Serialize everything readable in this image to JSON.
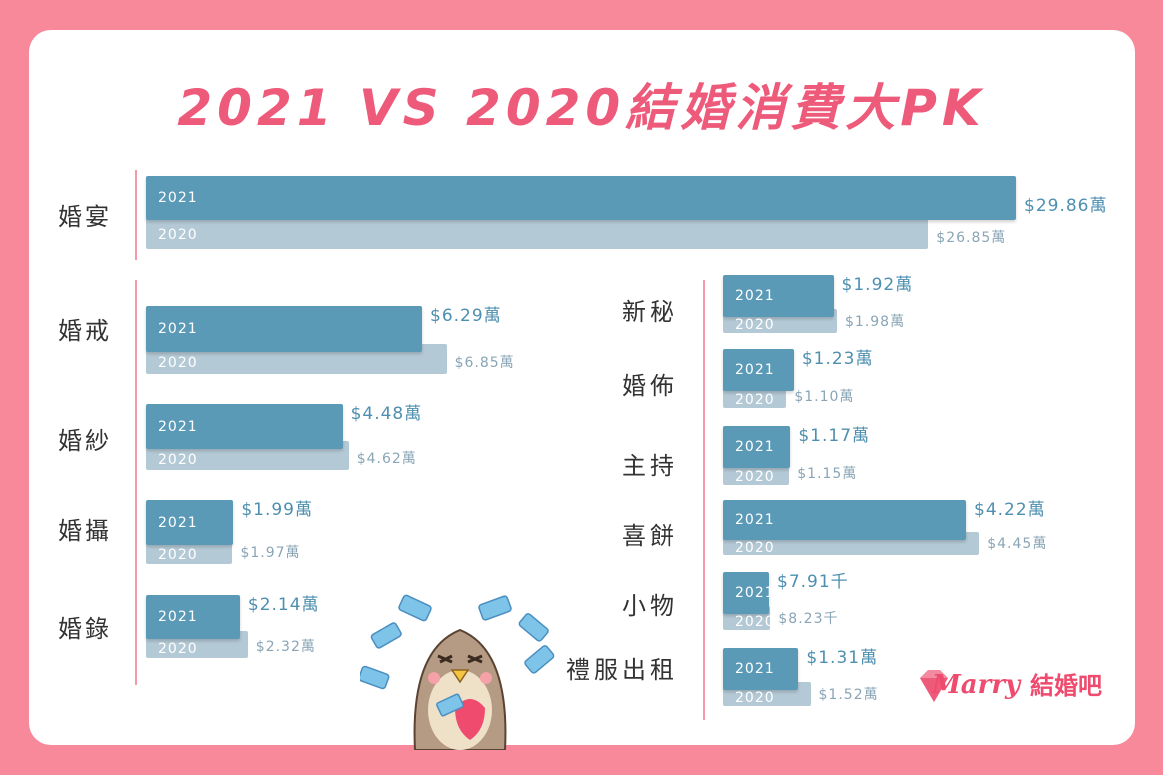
{
  "title": "2021 VS 2020結婚消費大PK",
  "logo": {
    "script": "Marry",
    "name": "結婚吧"
  },
  "colors": {
    "background": "#f7899b",
    "title": "#ee5a7a",
    "bar_2021": "#5a9ab7",
    "bar_2020": "#b4c9d6",
    "divider": "#f29aaa"
  },
  "chart_data": {
    "type": "bar",
    "orientation": "horizontal",
    "series_labels": [
      "2021",
      "2020"
    ],
    "items": [
      {
        "category": "婚宴",
        "v2021": 29.86,
        "v2020": 26.85,
        "label2021": "$29.86萬",
        "label2020": "$26.85萬"
      },
      {
        "category": "婚戒",
        "v2021": 6.29,
        "v2020": 6.85,
        "label2021": "$6.29萬",
        "label2020": "$6.85萬"
      },
      {
        "category": "婚紗",
        "v2021": 4.48,
        "v2020": 4.62,
        "label2021": "$4.48萬",
        "label2020": "$4.62萬"
      },
      {
        "category": "婚攝",
        "v2021": 1.99,
        "v2020": 1.97,
        "label2021": "$1.99萬",
        "label2020": "$1.97萬"
      },
      {
        "category": "婚錄",
        "v2021": 2.14,
        "v2020": 2.32,
        "label2021": "$2.14萬",
        "label2020": "$2.32萬"
      },
      {
        "category": "新秘",
        "v2021": 1.92,
        "v2020": 1.98,
        "label2021": "$1.92萬",
        "label2020": "$1.98萬"
      },
      {
        "category": "婚佈",
        "v2021": 1.23,
        "v2020": 1.1,
        "label2021": "$1.23萬",
        "label2020": "$1.10萬"
      },
      {
        "category": "主持",
        "v2021": 1.17,
        "v2020": 1.15,
        "label2021": "$1.17萬",
        "label2020": "$1.15萬"
      },
      {
        "category": "喜餅",
        "v2021": 4.22,
        "v2020": 4.45,
        "label2021": "$4.22萬",
        "label2020": "$4.45萬"
      },
      {
        "category": "小物",
        "v2021": 0.791,
        "v2020": 0.823,
        "label2021": "$7.91千",
        "label2020": "$8.23千"
      },
      {
        "category": "禮服出租",
        "v2021": 1.31,
        "v2020": 1.52,
        "label2021": "$1.31萬",
        "label2020": "$1.52萬"
      }
    ]
  }
}
